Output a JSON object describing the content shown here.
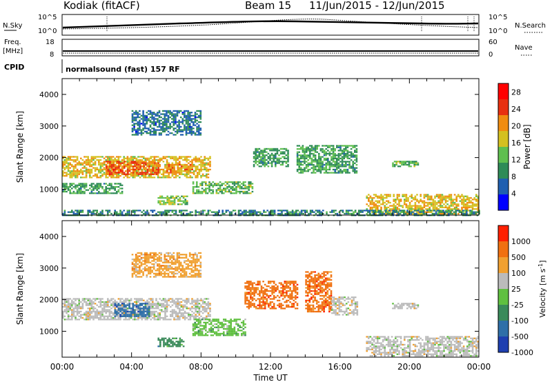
{
  "header": {
    "station": "Kodiak (fitACF)",
    "beam": "Beam 15",
    "date_range": "11/Jun/2015 - 12/Jun/2015"
  },
  "summary_panels": {
    "nsky_label": "N.Sky",
    "nsky_ticks": [
      "10^5",
      "10^0"
    ],
    "nsearch_label": "N.Search",
    "nsearch_ticks": [
      "10^5",
      "10^0"
    ],
    "freq_label_1": "Freq.",
    "freq_label_2": "[MHz]",
    "freq_ticks": [
      "18",
      "8"
    ],
    "nave_label": "Nave",
    "nave_ticks": [
      "60",
      "0"
    ],
    "cpid_label": "CPID",
    "cpid_text": "normalsound (fast) 157 RF"
  },
  "chart_data": [
    {
      "type": "heatmap",
      "title": "",
      "xlabel": "",
      "ylabel": "Slant Range [km]",
      "ylim": [
        180,
        4500
      ],
      "yticks": [
        "1000",
        "2000",
        "3000",
        "4000"
      ],
      "xlim": [
        "00:00",
        "24:00"
      ],
      "colorbar": {
        "label": "Power [dB]",
        "ticks": [
          "4",
          "8",
          "12",
          "16",
          "20",
          "24",
          "28"
        ],
        "range": [
          0,
          30
        ],
        "colors": [
          "#0000ff",
          "#1f5fb0",
          "#2e8b57",
          "#5fbf4f",
          "#d4c020",
          "#f08c10",
          "#e83010",
          "#ff0000"
        ]
      },
      "echo_regions": [
        {
          "t0": 0.0,
          "t1": 8.5,
          "r0": 1350,
          "r1": 2050,
          "level": 18
        },
        {
          "t0": 2.5,
          "t1": 5.5,
          "r0": 1450,
          "r1": 1900,
          "level": 24
        },
        {
          "t0": 6.0,
          "t1": 7.5,
          "r0": 1500,
          "r1": 1800,
          "level": 22
        },
        {
          "t0": 0.0,
          "t1": 3.5,
          "r0": 850,
          "r1": 1200,
          "level": 10
        },
        {
          "t0": 5.5,
          "t1": 7.2,
          "r0": 500,
          "r1": 800,
          "level": 14
        },
        {
          "t0": 7.5,
          "t1": 11.0,
          "r0": 850,
          "r1": 1250,
          "level": 12
        },
        {
          "t0": 11.0,
          "t1": 13.0,
          "r0": 1700,
          "r1": 2300,
          "level": 10
        },
        {
          "t0": 13.5,
          "t1": 17.0,
          "r0": 1500,
          "r1": 2400,
          "level": 10
        },
        {
          "t0": 19.0,
          "t1": 20.5,
          "r0": 1700,
          "r1": 1900,
          "level": 12
        },
        {
          "t0": 17.5,
          "t1": 24.0,
          "r0": 200,
          "r1": 850,
          "level": 18
        },
        {
          "t0": 0.0,
          "t1": 24.0,
          "r0": 180,
          "r1": 350,
          "level": 8
        },
        {
          "t0": 4.0,
          "t1": 8.0,
          "r0": 2700,
          "r1": 3500,
          "level": 6
        }
      ]
    },
    {
      "type": "heatmap",
      "title": "",
      "xlabel": "Time UT",
      "ylabel": "Slant Range [km]",
      "ylim": [
        180,
        4500
      ],
      "yticks": [
        "1000",
        "2000",
        "3000",
        "4000"
      ],
      "xticks": [
        "00:00",
        "04:00",
        "08:00",
        "12:00",
        "16:00",
        "20:00",
        "00:00"
      ],
      "xlim": [
        "00:00",
        "24:00"
      ],
      "colorbar": {
        "label": "Velocity [m s^-1]",
        "ticks": [
          "1000",
          "500",
          "100",
          "25",
          "-25",
          "-100",
          "-500",
          "-1000"
        ],
        "colors": [
          "#1e3fb0",
          "#2e6fa8",
          "#3a8a5a",
          "#60c040",
          "#bbbbbb",
          "#f0a030",
          "#f07010",
          "#ff2000"
        ]
      },
      "echo_regions": [
        {
          "t0": 0.0,
          "t1": 8.5,
          "r0": 1350,
          "r1": 2050,
          "level": 4
        },
        {
          "t0": 3.0,
          "t1": 5.0,
          "r0": 1450,
          "r1": 1900,
          "level": 1
        },
        {
          "t0": 5.5,
          "t1": 7.0,
          "r0": 500,
          "r1": 800,
          "level": 2
        },
        {
          "t0": 7.5,
          "t1": 10.5,
          "r0": 850,
          "r1": 1400,
          "level": 3
        },
        {
          "t0": 10.5,
          "t1": 13.5,
          "r0": 1700,
          "r1": 2600,
          "level": 6
        },
        {
          "t0": 14.0,
          "t1": 15.5,
          "r0": 1600,
          "r1": 2900,
          "level": 6
        },
        {
          "t0": 15.5,
          "t1": 17.0,
          "r0": 1500,
          "r1": 2100,
          "level": 4
        },
        {
          "t0": 19.0,
          "t1": 20.5,
          "r0": 1700,
          "r1": 1900,
          "level": 4
        },
        {
          "t0": 17.5,
          "t1": 24.0,
          "r0": 200,
          "r1": 850,
          "level": 4
        },
        {
          "t0": 4.0,
          "t1": 8.0,
          "r0": 2700,
          "r1": 3500,
          "level": 5
        }
      ]
    }
  ]
}
